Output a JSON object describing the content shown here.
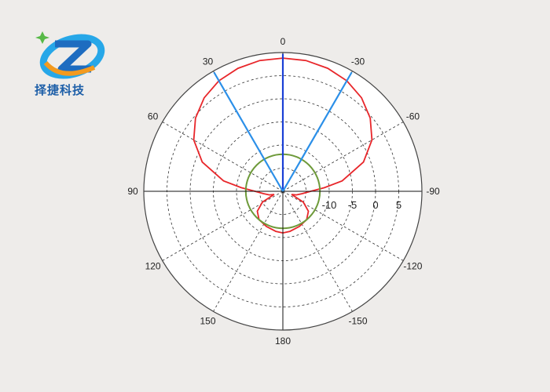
{
  "brand": {
    "name": "择捷科技",
    "colors": {
      "blue": "#1e6cc0",
      "cyan": "#27a7e8",
      "green": "#57b947",
      "orange": "#f39a1e"
    }
  },
  "chart_data": {
    "type": "polar",
    "title": "",
    "angle_labels": [
      {
        "deg": 0,
        "text": "0"
      },
      {
        "deg": 30,
        "text": "-30"
      },
      {
        "deg": 60,
        "text": "-60"
      },
      {
        "deg": 90,
        "text": "-90"
      },
      {
        "deg": 120,
        "text": "-120"
      },
      {
        "deg": 150,
        "text": "-150"
      },
      {
        "deg": 180,
        "text": "180"
      },
      {
        "deg": 210,
        "text": "150"
      },
      {
        "deg": 240,
        "text": "120"
      },
      {
        "deg": 270,
        "text": "90"
      },
      {
        "deg": 300,
        "text": "60"
      },
      {
        "deg": 330,
        "text": "30"
      }
    ],
    "radial": {
      "min_db": -20,
      "max_db": 10,
      "step_db": 5,
      "tick_labels": [
        "-10",
        "-5",
        "0",
        "5"
      ],
      "tick_values": [
        -10,
        -5,
        0,
        5
      ]
    },
    "grid": true,
    "series": [
      {
        "kind": "pattern",
        "color": "#e8262a",
        "points": [
          {
            "deg": 0,
            "db": 8.8
          },
          {
            "deg": 10,
            "db": 8.7
          },
          {
            "deg": 20,
            "db": 8.3
          },
          {
            "deg": 30,
            "db": 7.6
          },
          {
            "deg": 40,
            "db": 6.4
          },
          {
            "deg": 50,
            "db": 4.6
          },
          {
            "deg": 60,
            "db": 2.2
          },
          {
            "deg": 70,
            "db": -1.5
          },
          {
            "deg": 80,
            "db": -7
          },
          {
            "deg": 85,
            "db": -11
          },
          {
            "deg": 90,
            "db": -14
          },
          {
            "deg": 97,
            "db": -15.8
          },
          {
            "deg": 105,
            "db": -17
          },
          {
            "deg": 110,
            "db": -18
          },
          {
            "deg": 118,
            "db": -15
          },
          {
            "deg": 128,
            "db": -13
          },
          {
            "deg": 140,
            "db": -12
          },
          {
            "deg": 155,
            "db": -11.6
          },
          {
            "deg": 170,
            "db": -11.2
          },
          {
            "deg": 180,
            "db": -11
          },
          {
            "deg": 190,
            "db": -11.2
          },
          {
            "deg": 205,
            "db": -11.6
          },
          {
            "deg": 220,
            "db": -12
          },
          {
            "deg": 232,
            "db": -13
          },
          {
            "deg": 242,
            "db": -15
          },
          {
            "deg": 250,
            "db": -18
          },
          {
            "deg": 255,
            "db": -17
          },
          {
            "deg": 263,
            "db": -15.8
          },
          {
            "deg": 270,
            "db": -14
          },
          {
            "deg": 275,
            "db": -11
          },
          {
            "deg": 280,
            "db": -7
          },
          {
            "deg": 290,
            "db": -1.5
          },
          {
            "deg": 300,
            "db": 2.2
          },
          {
            "deg": 310,
            "db": 4.6
          },
          {
            "deg": 320,
            "db": 6.4
          },
          {
            "deg": 330,
            "db": 7.6
          },
          {
            "deg": 340,
            "db": 8.3
          },
          {
            "deg": 350,
            "db": 8.7
          },
          {
            "deg": 360,
            "db": 8.8
          }
        ]
      },
      {
        "kind": "circle",
        "color": "#6e9a3a",
        "db": -12
      },
      {
        "kind": "beam-line",
        "color": "#1a3fd6",
        "deg": 0
      },
      {
        "kind": "beam-line",
        "color": "#2b8fe8",
        "deg": 30
      },
      {
        "kind": "beam-line",
        "color": "#2b8fe8",
        "deg": 330
      }
    ]
  }
}
